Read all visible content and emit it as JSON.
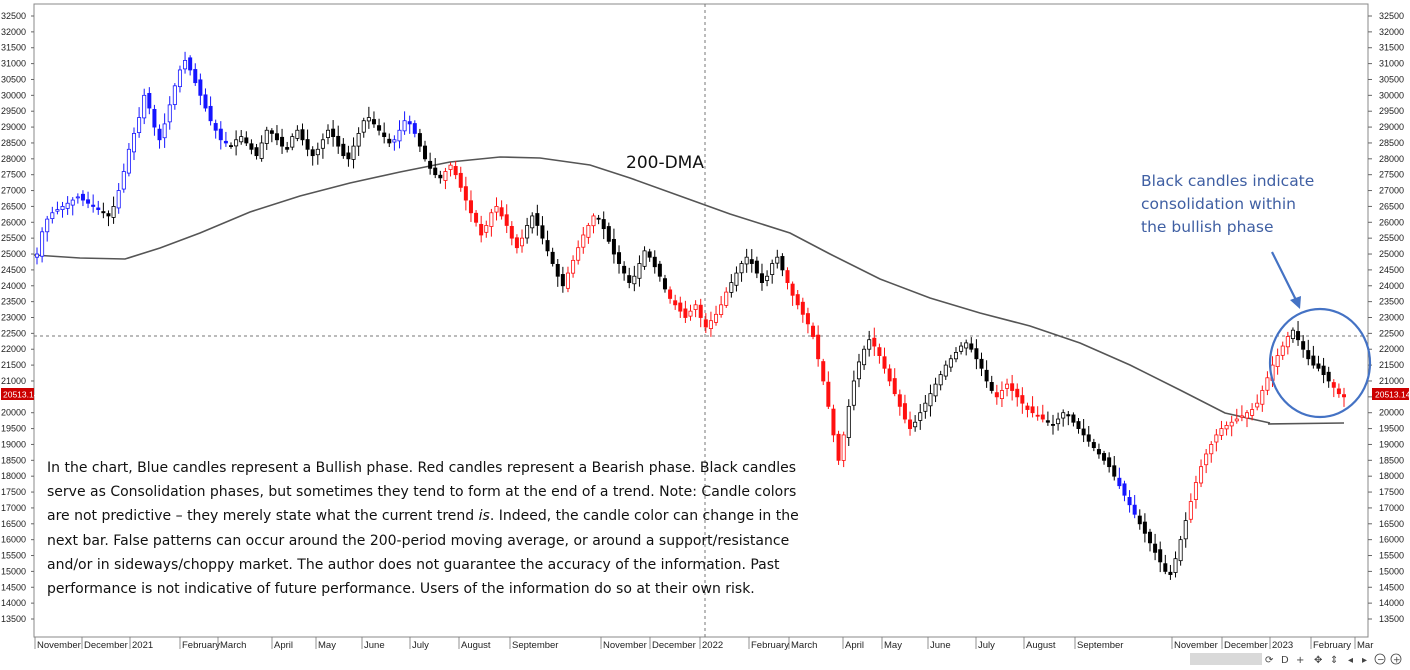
{
  "chart_data": {
    "type": "candlestick",
    "title": "",
    "xlabel": "",
    "ylabel": "",
    "ylim": [
      13000,
      32700
    ],
    "y_ticks": [
      13500,
      14000,
      14500,
      15000,
      15500,
      16000,
      16500,
      17000,
      17500,
      18000,
      18500,
      19000,
      19500,
      20000,
      20500,
      21000,
      21500,
      22000,
      22500,
      23000,
      23500,
      24000,
      24500,
      25000,
      25500,
      26000,
      26500,
      27000,
      27500,
      28000,
      28500,
      29000,
      29500,
      30000,
      30500,
      31000,
      31500,
      32000,
      32500
    ],
    "x_ticks": [
      "November",
      "December",
      "2021",
      "February",
      "March",
      "April",
      "May",
      "June",
      "July",
      "August",
      "September",
      "November",
      "December",
      "2022",
      "February",
      "March",
      "April",
      "May",
      "June",
      "July",
      "August",
      "September",
      "November",
      "December",
      "2023",
      "February",
      "Mar"
    ],
    "last_price_label": "20513.14",
    "last_price": 20513.14,
    "legend": {
      "bullish": "Blue",
      "bearish": "Red",
      "consolidation": "Black"
    },
    "colors": {
      "bullish": "#1515ff",
      "bearish": "#ff1010",
      "consolidation": "#000000",
      "ma": "#555555",
      "annotation": "#4472c4"
    },
    "phases": [
      {
        "from": 0,
        "to": 13,
        "trend": "bullish"
      },
      {
        "from": 13,
        "to": 16,
        "trend": "consolidation"
      },
      {
        "from": 16,
        "to": 38,
        "trend": "bullish"
      },
      {
        "from": 38,
        "to": 70,
        "trend": "consolidation"
      },
      {
        "from": 70,
        "to": 75,
        "trend": "bullish"
      },
      {
        "from": 75,
        "to": 80,
        "trend": "consolidation"
      },
      {
        "from": 80,
        "to": 86,
        "trend": "bearish"
      },
      {
        "from": 86,
        "to": 96,
        "trend": "bearish"
      },
      {
        "from": 96,
        "to": 104,
        "trend": "consolidation"
      },
      {
        "from": 104,
        "to": 110,
        "trend": "bearish"
      },
      {
        "from": 110,
        "to": 114,
        "trend": "consolidation"
      },
      {
        "from": 114,
        "to": 124,
        "trend": "consolidation"
      },
      {
        "from": 124,
        "to": 136,
        "trend": "bearish"
      },
      {
        "from": 136,
        "to": 147,
        "trend": "consolidation"
      },
      {
        "from": 147,
        "to": 159,
        "trend": "bearish"
      },
      {
        "from": 159,
        "to": 164,
        "trend": "consolidation"
      },
      {
        "from": 164,
        "to": 172,
        "trend": "bearish"
      },
      {
        "from": 172,
        "to": 188,
        "trend": "consolidation"
      },
      {
        "from": 188,
        "to": 198,
        "trend": "bearish"
      },
      {
        "from": 198,
        "to": 212,
        "trend": "consolidation"
      },
      {
        "from": 212,
        "to": 216,
        "trend": "bullish"
      },
      {
        "from": 216,
        "to": 226,
        "trend": "consolidation"
      },
      {
        "from": 226,
        "to": 246,
        "trend": "bearish"
      },
      {
        "from": 246,
        "to": 254,
        "trend": "consolidation"
      },
      {
        "from": 254,
        "to": 260,
        "trend": "bearish"
      },
      {
        "from": 260,
        "to": 278,
        "trend": "consolidation"
      },
      {
        "from": 278,
        "to": 284,
        "trend": "bullish"
      },
      {
        "from": 284,
        "to": 300,
        "trend": "consolidation"
      },
      {
        "from": 300,
        "to": 318,
        "trend": "bearish"
      },
      {
        "from": 318,
        "to": 344,
        "trend": "bearish"
      },
      {
        "from": 344,
        "to": 360,
        "trend": "consolidation"
      },
      {
        "from": 360,
        "to": 366,
        "trend": "bullish"
      },
      {
        "from": 366,
        "to": 378,
        "trend": "bullish"
      },
      {
        "from": 378,
        "to": 392,
        "trend": "consolidation"
      }
    ],
    "closes": [
      25000,
      25700,
      26100,
      26300,
      26400,
      26500,
      26600,
      26700,
      26800,
      26700,
      26600,
      26500,
      26400,
      26300,
      26200,
      26500,
      27000,
      27600,
      28300,
      28800,
      29300,
      30000,
      29600,
      29000,
      28600,
      29100,
      29700,
      30300,
      30800,
      31100,
      30800,
      30400,
      30000,
      29600,
      29200,
      28900,
      28600,
      28500,
      28400,
      28600,
      28700,
      28500,
      28300,
      28100,
      28500,
      28900,
      28800,
      28600,
      28400,
      28300,
      28700,
      28900,
      28600,
      28300,
      28100,
      28300,
      28600,
      28900,
      28700,
      28400,
      28100,
      28000,
      28400,
      28800,
      29200,
      29300,
      29100,
      28900,
      28700,
      28500,
      28600,
      28900,
      29200,
      29100,
      28800,
      28400,
      28000,
      27700,
      27500,
      27400,
      27600,
      27800,
      27500,
      27100,
      26700,
      26300,
      26000,
      25600,
      25900,
      26300,
      26500,
      26200,
      25900,
      25500,
      25200,
      25500,
      25900,
      26200,
      25900,
      25500,
      25100,
      24700,
      24300,
      24000,
      24400,
      24800,
      25200,
      25600,
      25900,
      26200,
      26100,
      25800,
      25400,
      25000,
      24700,
      24400,
      24100,
      24300,
      24700,
      25100,
      24900,
      24600,
      24300,
      23900,
      23600,
      23400,
      23200,
      23000,
      23200,
      23400,
      23000,
      22700,
      22900,
      23100,
      23400,
      23800,
      24100,
      24400,
      24700,
      24900,
      24700,
      24400,
      24100,
      24300,
      24700,
      24900,
      24500,
      24100,
      23700,
      23400,
      23100,
      22800,
      22400,
      21700,
      21000,
      20200,
      19300,
      18500,
      19300,
      20200,
      21000,
      21600,
      22000,
      22300,
      22100,
      21800,
      21400,
      21000,
      20600,
      20200,
      19800,
      19500,
      19700,
      20000,
      20300,
      20600,
      20900,
      21200,
      21500,
      21700,
      21900,
      22100,
      22200,
      22000,
      21700,
      21400,
      21000,
      20700,
      20500,
      20700,
      20900,
      20700,
      20500,
      20300,
      20100,
      20000,
      19900,
      19800,
      19700,
      19600,
      19800,
      20000,
      19900,
      19700,
      19500,
      19300,
      19100,
      18900,
      18700,
      18500,
      18300,
      18000,
      17700,
      17400,
      17100,
      16800,
      16500,
      16200,
      15900,
      15600,
      15300,
      15000,
      14900,
      15400,
      16000,
      16600,
      17200,
      17800,
      18300,
      18700,
      19000,
      19300,
      19500,
      19600,
      19700,
      19800,
      19900,
      20000,
      20100,
      20300,
      20700,
      21100,
      21500,
      21800,
      22100,
      22400,
      22600,
      22300,
      22000,
      21700,
      21500,
      21400,
      21200,
      21000,
      20800,
      20600,
      20500
    ]
  },
  "annotations": {
    "dma_label": "200-DMA",
    "callout_line1": "Black candles indicate",
    "callout_line2": "consolidation within",
    "callout_line3": "the bullish phase"
  },
  "note": {
    "part1": "In the chart, Blue candles represent a Bullish phase. Red candles represent a Bearish phase. Black candles serve as Consolidation phases, but sometimes they tend to form at the end of a trend. Note: Candle colors are not predictive – they merely state what the current trend ",
    "italic": "is",
    "part2": ". Indeed, the candle color can change in the next bar. False patterns can occur around the 200-period moving average, or around a support/resistance and/or in sideways/choppy market. The author does not guarantee the accuracy of the information. Past performance is not indicative of future performance. Users of the information do so at their own risk."
  },
  "toolbar": {
    "d_label": "D",
    "crosshair": "+",
    "prev": "◂",
    "next": "▸",
    "zoom_out": "−",
    "zoom_in": "+"
  }
}
